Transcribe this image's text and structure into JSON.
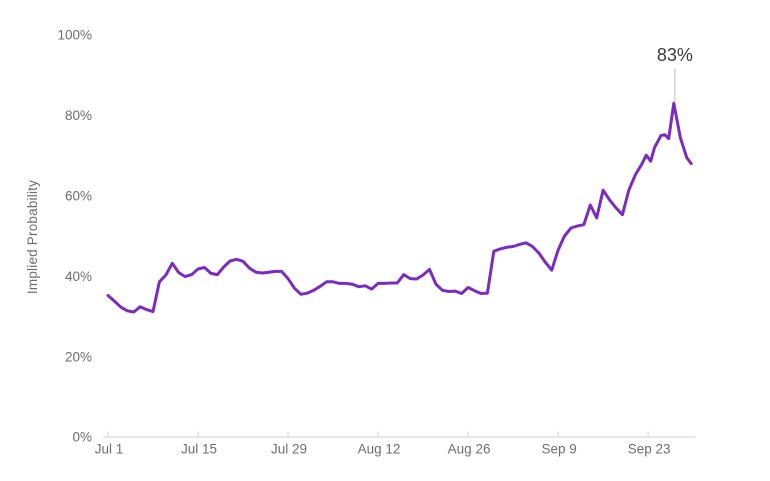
{
  "chart_data": {
    "type": "line",
    "title": "",
    "xlabel": "",
    "ylabel": "Implied Probability",
    "x_unit": "days since Jul 1",
    "xlim": [
      -0.8,
      91.3
    ],
    "ylim": [
      0,
      100
    ],
    "grid": false,
    "legend": "none",
    "x_ticks": [
      {
        "day": 0,
        "label": "Jul 1"
      },
      {
        "day": 14,
        "label": "Jul 15"
      },
      {
        "day": 28,
        "label": "Jul 29"
      },
      {
        "day": 42,
        "label": "Aug 12"
      },
      {
        "day": 56,
        "label": "Aug 26"
      },
      {
        "day": 70,
        "label": "Sep 9"
      },
      {
        "day": 84,
        "label": "Sep 23"
      }
    ],
    "y_ticks": [
      {
        "value": 0,
        "label": "0%"
      },
      {
        "value": 20,
        "label": "20%"
      },
      {
        "value": 40,
        "label": "40%"
      },
      {
        "value": 60,
        "label": "60%"
      },
      {
        "value": 80,
        "label": "80%"
      },
      {
        "value": 100,
        "label": "100%"
      }
    ],
    "annotation": {
      "label": "83%",
      "day": 88,
      "value": 83
    },
    "series": [
      {
        "name": "Implied Probability",
        "color": "#7a2cbd",
        "points": [
          [
            0,
            35.2
          ],
          [
            1,
            33.8
          ],
          [
            2,
            32.3
          ],
          [
            3,
            31.4
          ],
          [
            4,
            31.1
          ],
          [
            5,
            32.4
          ],
          [
            6,
            31.7
          ],
          [
            7,
            31.2
          ],
          [
            8,
            38.6
          ],
          [
            9,
            40.3
          ],
          [
            10,
            43.2
          ],
          [
            11,
            40.9
          ],
          [
            12,
            39.9
          ],
          [
            13,
            40.4
          ],
          [
            14,
            41.8
          ],
          [
            15,
            42.2
          ],
          [
            16,
            40.7
          ],
          [
            17,
            40.4
          ],
          [
            18,
            42.3
          ],
          [
            19,
            43.8
          ],
          [
            20,
            44.2
          ],
          [
            21,
            43.7
          ],
          [
            22,
            42
          ],
          [
            23,
            41
          ],
          [
            24,
            40.8
          ],
          [
            25,
            41
          ],
          [
            26,
            41.2
          ],
          [
            27,
            41.2
          ],
          [
            28,
            39.4
          ],
          [
            29,
            37
          ],
          [
            30,
            35.5
          ],
          [
            31,
            35.8
          ],
          [
            32,
            36.5
          ],
          [
            33,
            37.5
          ],
          [
            34,
            38.6
          ],
          [
            35,
            38.6
          ],
          [
            36,
            38.2
          ],
          [
            37,
            38.2
          ],
          [
            38,
            38
          ],
          [
            39,
            37.4
          ],
          [
            40,
            37.6
          ],
          [
            41,
            36.8
          ],
          [
            42,
            38.2
          ],
          [
            43,
            38.2
          ],
          [
            44,
            38.3
          ],
          [
            45,
            38.3
          ],
          [
            46,
            40.4
          ],
          [
            47,
            39.4
          ],
          [
            48,
            39.3
          ],
          [
            49,
            40.3
          ],
          [
            50,
            41.7
          ],
          [
            51,
            38
          ],
          [
            52,
            36.5
          ],
          [
            53,
            36.2
          ],
          [
            54,
            36.3
          ],
          [
            55,
            35.7
          ],
          [
            56,
            37.2
          ],
          [
            57,
            36.4
          ],
          [
            58,
            35.7
          ],
          [
            59,
            35.8
          ],
          [
            60,
            46.2
          ],
          [
            61,
            46.8
          ],
          [
            62,
            47.2
          ],
          [
            63,
            47.4
          ],
          [
            64,
            47.9
          ],
          [
            65,
            48.3
          ],
          [
            66,
            47.4
          ],
          [
            67,
            45.8
          ],
          [
            68,
            43.5
          ],
          [
            69,
            41.5
          ],
          [
            70,
            46.5
          ],
          [
            71,
            50
          ],
          [
            72,
            52
          ],
          [
            73,
            52.5
          ],
          [
            74,
            52.8
          ],
          [
            75,
            57.7
          ],
          [
            76,
            54.5
          ],
          [
            77,
            61.4
          ],
          [
            78,
            59
          ],
          [
            79,
            57
          ],
          [
            80,
            55.3
          ],
          [
            81,
            61.4
          ],
          [
            82,
            65.2
          ],
          [
            83,
            67.8
          ],
          [
            83.7,
            70.1
          ],
          [
            84.4,
            68.6
          ],
          [
            85,
            72
          ],
          [
            86,
            75
          ],
          [
            86.6,
            75.2
          ],
          [
            87.2,
            74.2
          ],
          [
            88,
            83
          ],
          [
            89,
            74.5
          ],
          [
            90,
            69.5
          ],
          [
            90.7,
            68
          ]
        ]
      }
    ]
  },
  "colors": {
    "line": "#7a2cbd",
    "axis_line": "#d9d9d9",
    "tick_mark": "#d9d9d9",
    "tick_label": "#6e6e6e",
    "annotation_text": "#3a3a3a",
    "leader_line": "#c8c8c8",
    "background": "#ffffff"
  }
}
